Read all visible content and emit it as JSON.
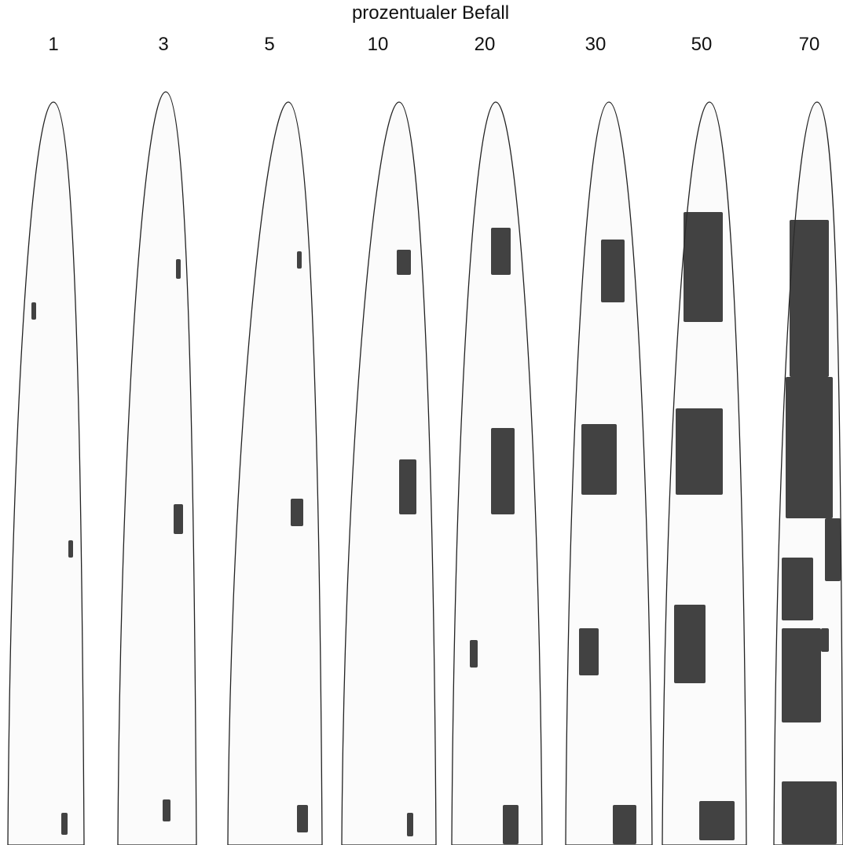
{
  "title": "prozentualer Befall",
  "leaves": [
    {
      "label": "1"
    },
    {
      "label": "3"
    },
    {
      "label": "5"
    },
    {
      "label": "10"
    },
    {
      "label": "20"
    },
    {
      "label": "30"
    },
    {
      "label": "50"
    },
    {
      "label": "70"
    }
  ]
}
